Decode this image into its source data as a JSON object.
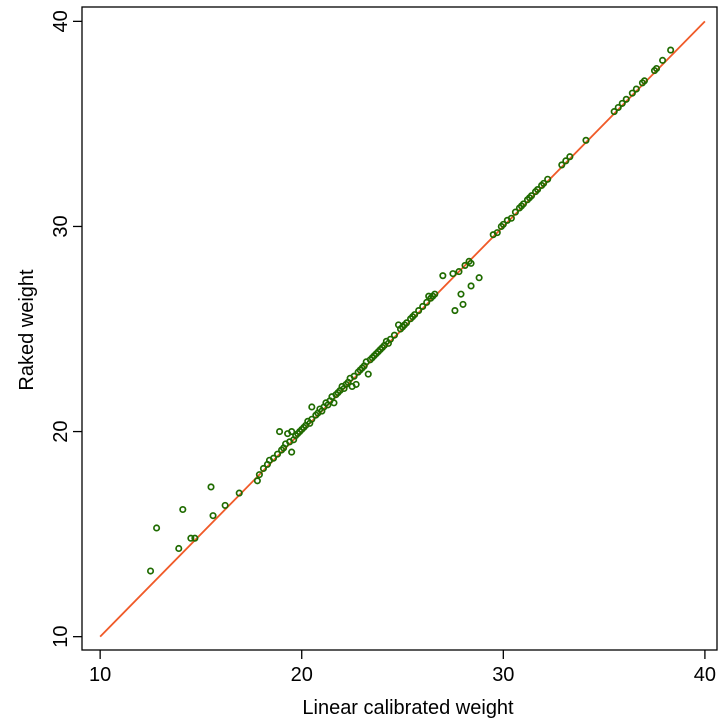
{
  "chart_data": {
    "type": "scatter",
    "title": "",
    "xlabel": "Linear calibrated weight",
    "ylabel": "Raked weight",
    "xlim": [
      9.1,
      40.6
    ],
    "ylim": [
      9.35,
      40.7
    ],
    "xticks": [
      10,
      20,
      30,
      40
    ],
    "yticks": [
      10,
      20,
      30,
      40
    ],
    "xtick_labels": [
      "10",
      "20",
      "30",
      "40"
    ],
    "ytick_labels": [
      "10",
      "20",
      "30",
      "40"
    ],
    "grid": false,
    "legend": "none",
    "colors": {
      "points": "#1f6b00",
      "line": "#f05a28"
    },
    "reference_line": {
      "type": "identity",
      "from": [
        10,
        10
      ],
      "to": [
        40,
        40
      ]
    },
    "series": [
      {
        "marker": "hollow-circle",
        "points": [
          [
            12.5,
            13.2
          ],
          [
            12.8,
            15.3
          ],
          [
            13.9,
            14.3
          ],
          [
            14.1,
            16.2
          ],
          [
            14.5,
            14.8
          ],
          [
            14.7,
            14.8
          ],
          [
            15.5,
            17.3
          ],
          [
            15.6,
            15.9
          ],
          [
            16.2,
            16.4
          ],
          [
            16.9,
            17.0
          ],
          [
            17.8,
            17.6
          ],
          [
            17.9,
            17.9
          ],
          [
            18.1,
            18.2
          ],
          [
            18.3,
            18.4
          ],
          [
            18.4,
            18.6
          ],
          [
            18.6,
            18.7
          ],
          [
            18.8,
            18.9
          ],
          [
            18.9,
            20.0
          ],
          [
            19.0,
            19.1
          ],
          [
            19.1,
            19.2
          ],
          [
            19.2,
            19.4
          ],
          [
            19.3,
            19.9
          ],
          [
            19.4,
            19.5
          ],
          [
            19.5,
            20.0
          ],
          [
            19.5,
            19.0
          ],
          [
            19.6,
            19.6
          ],
          [
            19.7,
            19.8
          ],
          [
            19.8,
            19.9
          ],
          [
            19.9,
            20.0
          ],
          [
            20.0,
            20.1
          ],
          [
            20.1,
            20.2
          ],
          [
            20.2,
            20.3
          ],
          [
            20.3,
            20.5
          ],
          [
            20.4,
            20.4
          ],
          [
            20.5,
            20.6
          ],
          [
            20.5,
            21.2
          ],
          [
            20.7,
            20.8
          ],
          [
            20.8,
            20.9
          ],
          [
            20.9,
            21.1
          ],
          [
            21.0,
            21.0
          ],
          [
            21.1,
            21.2
          ],
          [
            21.2,
            21.4
          ],
          [
            21.3,
            21.3
          ],
          [
            21.4,
            21.5
          ],
          [
            21.5,
            21.7
          ],
          [
            21.6,
            21.4
          ],
          [
            21.7,
            21.8
          ],
          [
            21.8,
            21.9
          ],
          [
            21.9,
            22.0
          ],
          [
            22.0,
            22.2
          ],
          [
            22.1,
            22.1
          ],
          [
            22.2,
            22.3
          ],
          [
            22.3,
            22.4
          ],
          [
            22.4,
            22.6
          ],
          [
            22.5,
            22.2
          ],
          [
            22.6,
            22.7
          ],
          [
            22.7,
            22.3
          ],
          [
            22.8,
            22.9
          ],
          [
            22.9,
            23.0
          ],
          [
            23.0,
            23.1
          ],
          [
            23.1,
            23.2
          ],
          [
            23.2,
            23.4
          ],
          [
            23.3,
            22.8
          ],
          [
            23.4,
            23.5
          ],
          [
            23.5,
            23.6
          ],
          [
            23.6,
            23.7
          ],
          [
            23.7,
            23.8
          ],
          [
            23.8,
            23.9
          ],
          [
            23.9,
            24.0
          ],
          [
            24.0,
            24.1
          ],
          [
            24.1,
            24.2
          ],
          [
            24.2,
            24.4
          ],
          [
            24.3,
            24.3
          ],
          [
            24.4,
            24.5
          ],
          [
            24.6,
            24.7
          ],
          [
            24.8,
            25.2
          ],
          [
            24.9,
            25.0
          ],
          [
            25.0,
            25.1
          ],
          [
            25.1,
            25.2
          ],
          [
            25.2,
            25.3
          ],
          [
            25.4,
            25.5
          ],
          [
            25.5,
            25.6
          ],
          [
            25.6,
            25.7
          ],
          [
            25.8,
            25.9
          ],
          [
            26.0,
            26.1
          ],
          [
            26.2,
            26.3
          ],
          [
            26.3,
            26.6
          ],
          [
            26.4,
            26.5
          ],
          [
            26.5,
            26.6
          ],
          [
            26.6,
            26.7
          ],
          [
            27.0,
            27.6
          ],
          [
            27.5,
            27.7
          ],
          [
            27.6,
            25.9
          ],
          [
            27.8,
            27.8
          ],
          [
            27.9,
            26.7
          ],
          [
            28.0,
            26.2
          ],
          [
            28.1,
            28.1
          ],
          [
            28.3,
            28.3
          ],
          [
            28.4,
            28.2
          ],
          [
            28.4,
            27.1
          ],
          [
            28.8,
            27.5
          ],
          [
            29.5,
            29.6
          ],
          [
            29.7,
            29.7
          ],
          [
            29.9,
            30.0
          ],
          [
            30.0,
            30.1
          ],
          [
            30.2,
            30.3
          ],
          [
            30.4,
            30.4
          ],
          [
            30.6,
            30.7
          ],
          [
            30.8,
            30.9
          ],
          [
            30.9,
            31.0
          ],
          [
            31.0,
            31.1
          ],
          [
            31.2,
            31.3
          ],
          [
            31.3,
            31.4
          ],
          [
            31.4,
            31.5
          ],
          [
            31.6,
            31.7
          ],
          [
            31.7,
            31.8
          ],
          [
            31.9,
            32.0
          ],
          [
            32.0,
            32.1
          ],
          [
            32.2,
            32.3
          ],
          [
            32.9,
            33.0
          ],
          [
            33.1,
            33.2
          ],
          [
            33.3,
            33.4
          ],
          [
            34.1,
            34.2
          ],
          [
            35.5,
            35.6
          ],
          [
            35.7,
            35.8
          ],
          [
            35.9,
            36.0
          ],
          [
            36.1,
            36.2
          ],
          [
            36.4,
            36.5
          ],
          [
            36.6,
            36.7
          ],
          [
            36.9,
            37.0
          ],
          [
            37.0,
            37.1
          ],
          [
            37.5,
            37.6
          ],
          [
            37.6,
            37.7
          ],
          [
            37.9,
            38.1
          ],
          [
            38.3,
            38.6
          ]
        ]
      }
    ]
  }
}
